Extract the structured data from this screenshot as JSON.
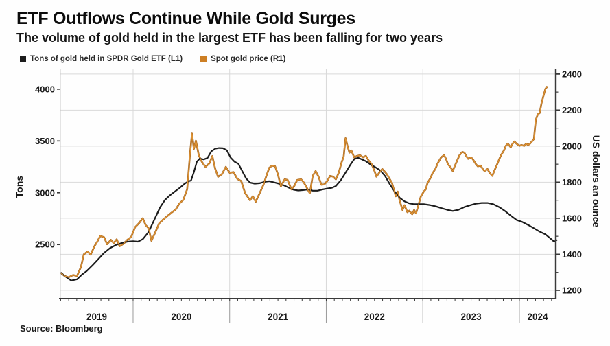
{
  "header": {
    "title": "ETF Outflows Continue While Gold Surges",
    "subtitle": "The volume of gold held in the largest ETF has been falling for two years"
  },
  "legend": [
    {
      "label": "Tons of gold held in SPDR Gold ETF  (L1)",
      "color": "#1c1c1c"
    },
    {
      "label": "Spot gold price (R1)",
      "color": "#cd7f24"
    }
  ],
  "source": "Source: Bloomberg",
  "colors": {
    "tons_line": "#1c1c1c",
    "gold_line_dark": "#a8661c",
    "gold_line_light": "#dd9336",
    "gridline": "#d9d9d9",
    "axis_dark": "#3a3a3a",
    "axis_light": "#c9c9c9",
    "tick_text": "#1a1a1a"
  },
  "chart_data": {
    "type": "line",
    "title": "ETF Outflows Continue While Gold Surges",
    "subtitle": "The volume of gold held in the largest ETF has been falling for two years",
    "legend_position": "top-left",
    "grid": "horizontal at right-axis 200-dollar steps, vertical at year boundaries",
    "x_axis": {
      "min": 2019.247,
      "max": 2024.377,
      "year_labels": [
        "2019",
        "2020",
        "2021",
        "2022",
        "2023",
        "2024"
      ],
      "boundaries": [
        2020,
        2021,
        2022,
        2023,
        2024
      ]
    },
    "left_axis": {
      "label": "Tons",
      "ticks": [
        2500,
        3000,
        3500,
        4000
      ],
      "min": 1978,
      "max": 4198
    },
    "right_axis": {
      "label": "US dollars an ounce",
      "ticks": [
        1200,
        1400,
        1600,
        1800,
        2000,
        2200,
        2400
      ],
      "minor_step": 100,
      "min": 1154,
      "max": 2430
    },
    "series": [
      {
        "name": "Tons of gold held in SPDR Gold ETF",
        "axis": "L1",
        "color": "#1c1c1c",
        "points": [
          [
            2019.25,
            2230
          ],
          [
            2019.3,
            2190
          ],
          [
            2019.36,
            2152
          ],
          [
            2019.42,
            2165
          ],
          [
            2019.47,
            2210
          ],
          [
            2019.52,
            2245
          ],
          [
            2019.58,
            2300
          ],
          [
            2019.64,
            2360
          ],
          [
            2019.7,
            2420
          ],
          [
            2019.76,
            2465
          ],
          [
            2019.82,
            2495
          ],
          [
            2019.88,
            2515
          ],
          [
            2019.94,
            2528
          ],
          [
            2020.0,
            2532
          ],
          [
            2020.05,
            2528
          ],
          [
            2020.1,
            2552
          ],
          [
            2020.16,
            2620
          ],
          [
            2020.22,
            2740
          ],
          [
            2020.28,
            2860
          ],
          [
            2020.33,
            2930
          ],
          [
            2020.38,
            2975
          ],
          [
            2020.43,
            3010
          ],
          [
            2020.48,
            3045
          ],
          [
            2020.53,
            3085
          ],
          [
            2020.57,
            3110
          ],
          [
            2020.6,
            3118
          ],
          [
            2020.63,
            3200
          ],
          [
            2020.66,
            3300
          ],
          [
            2020.69,
            3330
          ],
          [
            2020.73,
            3322
          ],
          [
            2020.77,
            3335
          ],
          [
            2020.81,
            3400
          ],
          [
            2020.85,
            3425
          ],
          [
            2020.89,
            3432
          ],
          [
            2020.93,
            3430
          ],
          [
            2020.97,
            3410
          ],
          [
            2021.01,
            3340
          ],
          [
            2021.05,
            3300
          ],
          [
            2021.09,
            3280
          ],
          [
            2021.13,
            3210
          ],
          [
            2021.17,
            3140
          ],
          [
            2021.21,
            3098
          ],
          [
            2021.26,
            3088
          ],
          [
            2021.31,
            3092
          ],
          [
            2021.36,
            3105
          ],
          [
            2021.41,
            3112
          ],
          [
            2021.46,
            3100
          ],
          [
            2021.51,
            3088
          ],
          [
            2021.56,
            3072
          ],
          [
            2021.61,
            3050
          ],
          [
            2021.66,
            3030
          ],
          [
            2021.71,
            3022
          ],
          [
            2021.76,
            3026
          ],
          [
            2021.81,
            3032
          ],
          [
            2021.86,
            3020
          ],
          [
            2021.91,
            3020
          ],
          [
            2021.96,
            3032
          ],
          [
            2022.01,
            3040
          ],
          [
            2022.06,
            3048
          ],
          [
            2022.1,
            3065
          ],
          [
            2022.15,
            3120
          ],
          [
            2022.2,
            3195
          ],
          [
            2022.25,
            3270
          ],
          [
            2022.29,
            3325
          ],
          [
            2022.33,
            3338
          ],
          [
            2022.37,
            3322
          ],
          [
            2022.41,
            3305
          ],
          [
            2022.46,
            3272
          ],
          [
            2022.51,
            3246
          ],
          [
            2022.56,
            3215
          ],
          [
            2022.61,
            3160
          ],
          [
            2022.66,
            3080
          ],
          [
            2022.71,
            3010
          ],
          [
            2022.76,
            2952
          ],
          [
            2022.81,
            2918
          ],
          [
            2022.86,
            2898
          ],
          [
            2022.91,
            2890
          ],
          [
            2022.96,
            2890
          ],
          [
            2023.01,
            2890
          ],
          [
            2023.07,
            2882
          ],
          [
            2023.13,
            2870
          ],
          [
            2023.19,
            2852
          ],
          [
            2023.25,
            2836
          ],
          [
            2023.31,
            2824
          ],
          [
            2023.37,
            2836
          ],
          [
            2023.43,
            2862
          ],
          [
            2023.49,
            2880
          ],
          [
            2023.55,
            2895
          ],
          [
            2023.61,
            2902
          ],
          [
            2023.67,
            2902
          ],
          [
            2023.73,
            2890
          ],
          [
            2023.79,
            2862
          ],
          [
            2023.85,
            2825
          ],
          [
            2023.91,
            2780
          ],
          [
            2023.97,
            2738
          ],
          [
            2024.03,
            2718
          ],
          [
            2024.09,
            2690
          ],
          [
            2024.15,
            2658
          ],
          [
            2024.21,
            2625
          ],
          [
            2024.27,
            2598
          ],
          [
            2024.32,
            2560
          ],
          [
            2024.36,
            2528
          ],
          [
            2024.39,
            2545
          ]
        ]
      },
      {
        "name": "Spot gold price",
        "axis": "R1",
        "color": "#cd7f24",
        "points": [
          [
            2019.25,
            1298
          ],
          [
            2019.29,
            1280
          ],
          [
            2019.33,
            1272
          ],
          [
            2019.38,
            1285
          ],
          [
            2019.42,
            1280
          ],
          [
            2019.46,
            1330
          ],
          [
            2019.49,
            1400
          ],
          [
            2019.53,
            1415
          ],
          [
            2019.56,
            1398
          ],
          [
            2019.6,
            1445
          ],
          [
            2019.63,
            1471
          ],
          [
            2019.66,
            1502
          ],
          [
            2019.7,
            1494
          ],
          [
            2019.73,
            1456
          ],
          [
            2019.77,
            1480
          ],
          [
            2019.8,
            1462
          ],
          [
            2019.83,
            1483
          ],
          [
            2019.86,
            1445
          ],
          [
            2019.9,
            1458
          ],
          [
            2019.94,
            1480
          ],
          [
            2019.98,
            1496
          ],
          [
            2020.02,
            1550
          ],
          [
            2020.06,
            1572
          ],
          [
            2020.1,
            1600
          ],
          [
            2020.13,
            1562
          ],
          [
            2020.16,
            1545
          ],
          [
            2020.19,
            1475
          ],
          [
            2020.23,
            1522
          ],
          [
            2020.27,
            1572
          ],
          [
            2020.31,
            1592
          ],
          [
            2020.35,
            1610
          ],
          [
            2020.4,
            1632
          ],
          [
            2020.44,
            1648
          ],
          [
            2020.48,
            1682
          ],
          [
            2020.52,
            1702
          ],
          [
            2020.56,
            1762
          ],
          [
            2020.59,
            1960
          ],
          [
            2020.61,
            2070
          ],
          [
            2020.63,
            1985
          ],
          [
            2020.65,
            2030
          ],
          [
            2020.68,
            1950
          ],
          [
            2020.71,
            1915
          ],
          [
            2020.75,
            1885
          ],
          [
            2020.79,
            1905
          ],
          [
            2020.82,
            1945
          ],
          [
            2020.85,
            1875
          ],
          [
            2020.88,
            1830
          ],
          [
            2020.92,
            1845
          ],
          [
            2020.96,
            1885
          ],
          [
            2021.0,
            1852
          ],
          [
            2021.04,
            1856
          ],
          [
            2021.08,
            1818
          ],
          [
            2021.12,
            1806
          ],
          [
            2021.16,
            1740
          ],
          [
            2021.21,
            1700
          ],
          [
            2021.24,
            1722
          ],
          [
            2021.27,
            1692
          ],
          [
            2021.31,
            1738
          ],
          [
            2021.35,
            1786
          ],
          [
            2021.38,
            1835
          ],
          [
            2021.41,
            1880
          ],
          [
            2021.44,
            1892
          ],
          [
            2021.47,
            1888
          ],
          [
            2021.5,
            1843
          ],
          [
            2021.53,
            1776
          ],
          [
            2021.57,
            1816
          ],
          [
            2021.6,
            1812
          ],
          [
            2021.64,
            1760
          ],
          [
            2021.67,
            1780
          ],
          [
            2021.7,
            1812
          ],
          [
            2021.74,
            1816
          ],
          [
            2021.77,
            1797
          ],
          [
            2021.8,
            1768
          ],
          [
            2021.83,
            1738
          ],
          [
            2021.86,
            1835
          ],
          [
            2021.89,
            1862
          ],
          [
            2021.92,
            1831
          ],
          [
            2021.95,
            1786
          ],
          [
            2021.98,
            1788
          ],
          [
            2022.01,
            1806
          ],
          [
            2022.04,
            1835
          ],
          [
            2022.07,
            1831
          ],
          [
            2022.1,
            1816
          ],
          [
            2022.13,
            1854
          ],
          [
            2022.16,
            1912
          ],
          [
            2022.18,
            1940
          ],
          [
            2022.2,
            2044
          ],
          [
            2022.22,
            2002
          ],
          [
            2022.24,
            1964
          ],
          [
            2022.26,
            1976
          ],
          [
            2022.29,
            1938
          ],
          [
            2022.32,
            1946
          ],
          [
            2022.35,
            1950
          ],
          [
            2022.38,
            1938
          ],
          [
            2022.41,
            1946
          ],
          [
            2022.44,
            1920
          ],
          [
            2022.47,
            1900
          ],
          [
            2022.5,
            1862
          ],
          [
            2022.52,
            1831
          ],
          [
            2022.55,
            1854
          ],
          [
            2022.58,
            1873
          ],
          [
            2022.6,
            1862
          ],
          [
            2022.63,
            1843
          ],
          [
            2022.65,
            1824
          ],
          [
            2022.68,
            1797
          ],
          [
            2022.7,
            1760
          ],
          [
            2022.72,
            1722
          ],
          [
            2022.74,
            1748
          ],
          [
            2022.76,
            1700
          ],
          [
            2022.79,
            1646
          ],
          [
            2022.81,
            1672
          ],
          [
            2022.84,
            1634
          ],
          [
            2022.86,
            1642
          ],
          [
            2022.89,
            1622
          ],
          [
            2022.91,
            1646
          ],
          [
            2022.93,
            1627
          ],
          [
            2022.96,
            1684
          ],
          [
            2022.98,
            1722
          ],
          [
            2023.01,
            1748
          ],
          [
            2023.03,
            1760
          ],
          [
            2023.05,
            1797
          ],
          [
            2023.08,
            1824
          ],
          [
            2023.1,
            1850
          ],
          [
            2023.13,
            1873
          ],
          [
            2023.15,
            1900
          ],
          [
            2023.17,
            1920
          ],
          [
            2023.19,
            1938
          ],
          [
            2023.22,
            1950
          ],
          [
            2023.24,
            1930
          ],
          [
            2023.26,
            1900
          ],
          [
            2023.29,
            1881
          ],
          [
            2023.31,
            1862
          ],
          [
            2023.33,
            1888
          ],
          [
            2023.36,
            1926
          ],
          [
            2023.38,
            1950
          ],
          [
            2023.41,
            1968
          ],
          [
            2023.43,
            1964
          ],
          [
            2023.45,
            1945
          ],
          [
            2023.47,
            1930
          ],
          [
            2023.5,
            1938
          ],
          [
            2023.52,
            1926
          ],
          [
            2023.55,
            1900
          ],
          [
            2023.57,
            1888
          ],
          [
            2023.6,
            1892
          ],
          [
            2023.62,
            1873
          ],
          [
            2023.64,
            1862
          ],
          [
            2023.67,
            1873
          ],
          [
            2023.69,
            1854
          ],
          [
            2023.72,
            1835
          ],
          [
            2023.74,
            1862
          ],
          [
            2023.77,
            1900
          ],
          [
            2023.79,
            1926
          ],
          [
            2023.81,
            1950
          ],
          [
            2023.84,
            1976
          ],
          [
            2023.86,
            2002
          ],
          [
            2023.88,
            2014
          ],
          [
            2023.91,
            1994
          ],
          [
            2023.93,
            2014
          ],
          [
            2023.95,
            2026
          ],
          [
            2023.97,
            2014
          ],
          [
            2024.0,
            2002
          ],
          [
            2024.02,
            2006
          ],
          [
            2024.05,
            2002
          ],
          [
            2024.07,
            2014
          ],
          [
            2024.09,
            2006
          ],
          [
            2024.11,
            2014
          ],
          [
            2024.13,
            2026
          ],
          [
            2024.15,
            2040
          ],
          [
            2024.17,
            2146
          ],
          [
            2024.19,
            2176
          ],
          [
            2024.21,
            2184
          ],
          [
            2024.23,
            2240
          ],
          [
            2024.25,
            2280
          ],
          [
            2024.27,
            2318
          ],
          [
            2024.29,
            2332
          ]
        ]
      }
    ]
  }
}
